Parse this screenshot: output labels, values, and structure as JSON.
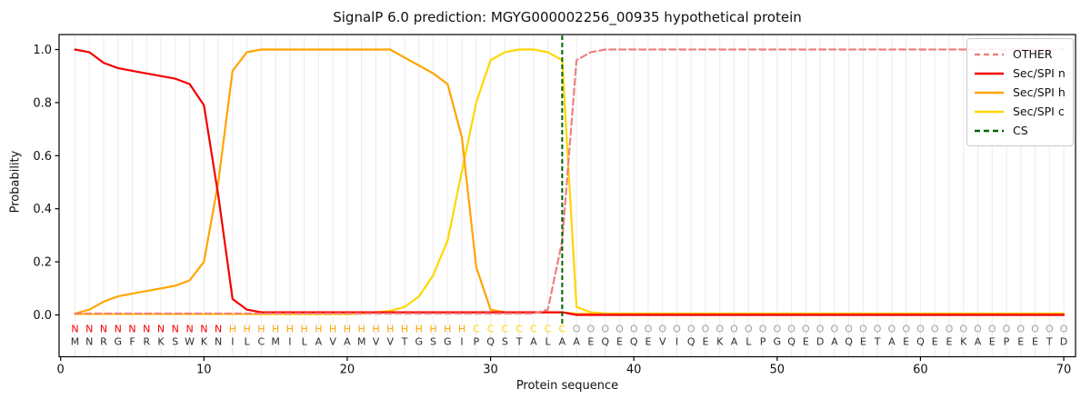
{
  "title": "SignalP 6.0 prediction: MGYG000002256_00935 hypothetical protein",
  "axes": {
    "xlabel": "Protein sequence",
    "ylabel": "Probability",
    "xticks": [
      0,
      10,
      20,
      30,
      40,
      50,
      60,
      70
    ],
    "yticks": [
      "0.0",
      "0.2",
      "0.4",
      "0.6",
      "0.8",
      "1.0"
    ]
  },
  "legend": {
    "items": [
      {
        "label": "OTHER",
        "color": "#f08080",
        "dashed": true
      },
      {
        "label": "Sec/SPI n",
        "color": "#f40000",
        "dashed": false
      },
      {
        "label": "Sec/SPI h",
        "color": "#ffa500",
        "dashed": false
      },
      {
        "label": "Sec/SPI c",
        "color": "#ffd700",
        "dashed": false
      },
      {
        "label": "CS",
        "color": "#006400",
        "dashed": true
      }
    ]
  },
  "chart_data": {
    "type": "line",
    "title": "SignalP 6.0 prediction: MGYG000002256_00935 hypothetical protein",
    "xlabel": "Protein sequence",
    "ylabel": "Probability",
    "xlim": [
      0,
      71
    ],
    "ylim": [
      -0.17,
      1.05
    ],
    "grid": "vertical-per-residue",
    "legend_position": "upper right",
    "x": [
      1,
      2,
      3,
      4,
      5,
      6,
      7,
      8,
      9,
      10,
      11,
      12,
      13,
      14,
      15,
      16,
      17,
      18,
      19,
      20,
      21,
      22,
      23,
      24,
      25,
      26,
      27,
      28,
      29,
      30,
      31,
      32,
      33,
      34,
      35,
      36,
      37,
      38,
      39,
      40,
      41,
      42,
      43,
      44,
      45,
      46,
      47,
      48,
      49,
      50,
      51,
      52,
      53,
      54,
      55,
      56,
      57,
      58,
      59,
      60,
      61,
      62,
      63,
      64,
      65,
      66,
      67,
      68,
      69,
      70
    ],
    "series": [
      {
        "name": "OTHER",
        "color": "#f08080",
        "style": "dashed",
        "values": [
          0.005,
          0.005,
          0.005,
          0.005,
          0.005,
          0.005,
          0.005,
          0.005,
          0.005,
          0.005,
          0.005,
          0.005,
          0.005,
          0.005,
          0.005,
          0.005,
          0.005,
          0.005,
          0.005,
          0.005,
          0.005,
          0.005,
          0.005,
          0.005,
          0.005,
          0.005,
          0.005,
          0.005,
          0.005,
          0.005,
          0.005,
          0.005,
          0.005,
          0.02,
          0.28,
          0.96,
          0.99,
          1.0,
          1.0,
          1.0,
          1.0,
          1.0,
          1.0,
          1.0,
          1.0,
          1.0,
          1.0,
          1.0,
          1.0,
          1.0,
          1.0,
          1.0,
          1.0,
          1.0,
          1.0,
          1.0,
          1.0,
          1.0,
          1.0,
          1.0,
          1.0,
          1.0,
          1.0,
          1.0,
          1.0,
          1.0,
          1.0,
          1.0,
          1.0,
          1.0
        ]
      },
      {
        "name": "Sec/SPI n",
        "color": "#f40000",
        "style": "solid",
        "values": [
          1.0,
          0.99,
          0.95,
          0.93,
          0.92,
          0.91,
          0.9,
          0.89,
          0.87,
          0.79,
          0.45,
          0.06,
          0.02,
          0.01,
          0.01,
          0.01,
          0.01,
          0.01,
          0.01,
          0.01,
          0.01,
          0.01,
          0.01,
          0.01,
          0.01,
          0.01,
          0.01,
          0.01,
          0.01,
          0.01,
          0.01,
          0.01,
          0.01,
          0.01,
          0.01,
          0.0,
          0.0,
          0.0,
          0.0,
          0.0,
          0.0,
          0.0,
          0.0,
          0.0,
          0.0,
          0.0,
          0.0,
          0.0,
          0.0,
          0.0,
          0.0,
          0.0,
          0.0,
          0.0,
          0.0,
          0.0,
          0.0,
          0.0,
          0.0,
          0.0,
          0.0,
          0.0,
          0.0,
          0.0,
          0.0,
          0.0,
          0.0,
          0.0,
          0.0,
          0.0
        ]
      },
      {
        "name": "Sec/SPI h",
        "color": "#ffa500",
        "style": "solid",
        "values": [
          0.005,
          0.02,
          0.05,
          0.07,
          0.08,
          0.09,
          0.1,
          0.11,
          0.13,
          0.2,
          0.5,
          0.92,
          0.99,
          1.0,
          1.0,
          1.0,
          1.0,
          1.0,
          1.0,
          1.0,
          1.0,
          1.0,
          1.0,
          0.97,
          0.94,
          0.91,
          0.87,
          0.67,
          0.18,
          0.02,
          0.01,
          0.01,
          0.01,
          0.01,
          0.01,
          0.004,
          0.004,
          0.004,
          0.004,
          0.004,
          0.004,
          0.004,
          0.004,
          0.004,
          0.004,
          0.004,
          0.004,
          0.004,
          0.004,
          0.004,
          0.004,
          0.004,
          0.004,
          0.004,
          0.004,
          0.004,
          0.004,
          0.004,
          0.004,
          0.004,
          0.004,
          0.004,
          0.004,
          0.004,
          0.004,
          0.004,
          0.004,
          0.004,
          0.004,
          0.004
        ]
      },
      {
        "name": "Sec/SPI c",
        "color": "#ffd700",
        "style": "solid",
        "values": [
          0.003,
          0.003,
          0.003,
          0.003,
          0.003,
          0.003,
          0.003,
          0.003,
          0.003,
          0.003,
          0.003,
          0.003,
          0.003,
          0.003,
          0.003,
          0.003,
          0.003,
          0.003,
          0.003,
          0.003,
          0.005,
          0.01,
          0.015,
          0.03,
          0.07,
          0.15,
          0.28,
          0.54,
          0.8,
          0.96,
          0.99,
          1.0,
          1.0,
          0.99,
          0.96,
          0.03,
          0.01,
          0.005,
          0.005,
          0.005,
          0.005,
          0.005,
          0.005,
          0.005,
          0.005,
          0.005,
          0.005,
          0.005,
          0.005,
          0.005,
          0.005,
          0.005,
          0.005,
          0.005,
          0.005,
          0.005,
          0.005,
          0.005,
          0.005,
          0.005,
          0.005,
          0.005,
          0.005,
          0.005,
          0.005,
          0.005,
          0.005,
          0.005,
          0.005,
          0.005
        ]
      }
    ],
    "cs_marker": {
      "label": "CS",
      "x": 35,
      "color": "#006400",
      "style": "dashed"
    },
    "annotation_rows": {
      "region_labels": {
        "text": "NNNNNNNNNNNHHHHHHHHHHHHHHHHHCCCCCCCOOOOOOOOOOOOOOOOOOOOOOOOOOOOOOOOOOO",
        "colors": {
          "N": "#f40000",
          "H": "#ffa500",
          "C": "#ffd700",
          "O": "#a0a0a0"
        }
      },
      "sequence": {
        "text": "MNRGFRKSWKNILCMILAVAMVVTGSGIPQSTALAAEQEQEVIQEKALPGQEDAQETAEQEEKAEPEETD",
        "color": "#2e2e2e"
      }
    }
  }
}
